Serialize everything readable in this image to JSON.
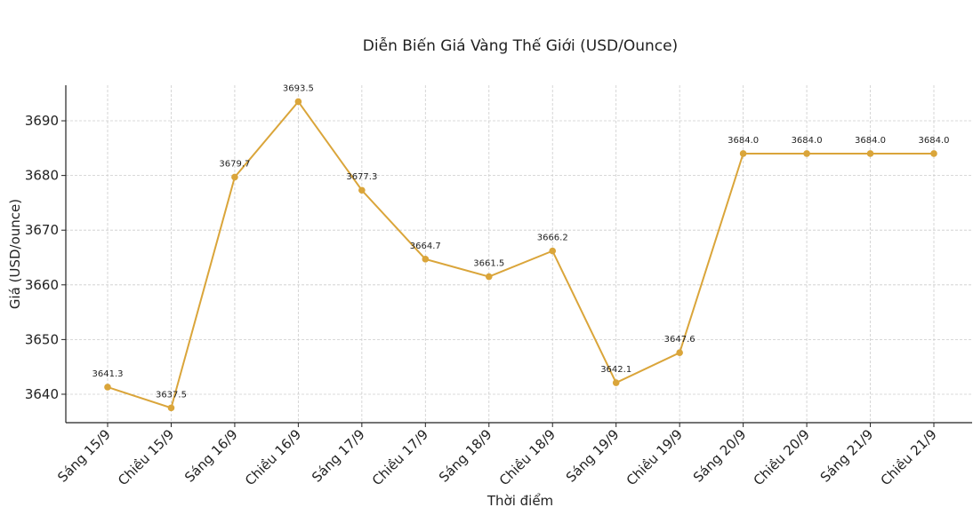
{
  "chart_data": {
    "type": "line",
    "title": "Diễn Biến Giá Vàng Thế Giới (USD/Ounce)",
    "xlabel": "Thời điểm",
    "ylabel": "Giá (USD/ounce)",
    "categories": [
      "Sáng 15/9",
      "Chiều 15/9",
      "Sáng 16/9",
      "Chiều 16/9",
      "Sáng 17/9",
      "Chiều 17/9",
      "Sáng 18/9",
      "Chiều 18/9",
      "Sáng 19/9",
      "Chiều 19/9",
      "Sáng 20/9",
      "Chiều 20/9",
      "Sáng 21/9",
      "Chiều 21/9"
    ],
    "values": [
      3641.3,
      3637.5,
      3679.7,
      3693.5,
      3677.3,
      3664.7,
      3661.5,
      3666.2,
      3642.1,
      3647.6,
      3684.0,
      3684.0,
      3684.0,
      3684.0
    ],
    "data_labels": [
      "3641.3",
      "3637.5",
      "3679.7",
      "3693.5",
      "3677.3",
      "3664.7",
      "3661.5",
      "3666.2",
      "3642.1",
      "3647.6",
      "3684.0",
      "3684.0",
      "3684.0",
      "3684.0"
    ],
    "yticks": [
      3640,
      3650,
      3660,
      3670,
      3680,
      3690
    ],
    "ylim": [
      3634.8,
      3696.5
    ],
    "grid": true,
    "color": "#DAA53A"
  }
}
